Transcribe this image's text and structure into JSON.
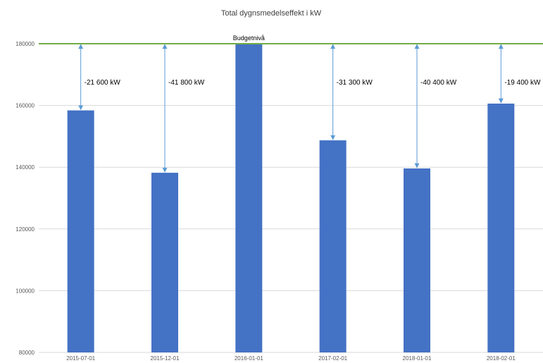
{
  "chart_data": {
    "type": "bar",
    "title": "Total dygnsmedelseffekt i kW",
    "xlabel": "",
    "ylabel": "",
    "categories": [
      "2015-07-01",
      "2015-12-01",
      "2016-01-01",
      "2017-02-01",
      "2018-01-01",
      "2018-02-01"
    ],
    "values": [
      158400,
      138200,
      180000,
      148700,
      139600,
      160600
    ],
    "ylim": [
      80000,
      180000
    ],
    "yticks": [
      80000,
      100000,
      120000,
      140000,
      160000,
      180000
    ],
    "grid": true,
    "legend": "none",
    "reference_line": {
      "value": 180000,
      "label": "Budgetnivå"
    },
    "difference_labels": [
      "-21 600 kW",
      "-41 800 kW",
      "",
      "-31 300 kW",
      "-40 400 kW",
      "-19 400 kW"
    ],
    "colors": {
      "bar": "#4472C4",
      "reference": "#70AD47",
      "arrow": "#5B9BD5",
      "grid": "#D9D9D9"
    }
  }
}
